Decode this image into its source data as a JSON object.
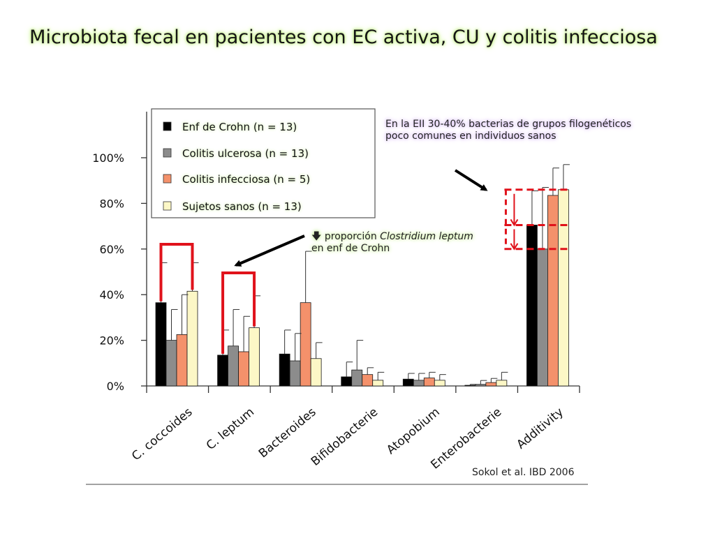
{
  "slide": {
    "title": "Microbiota fecal en pacientes con EC activa, CU y colitis infecciosa",
    "source": "Sokol et al. IBD 2006"
  },
  "annotations": {
    "top_note": "En la EII 30-40% bacterias de grupos filogenéticos poco comunes en individuos sanos",
    "mid_note_icon": "arrow-down-icon",
    "mid_note_prefix": "proporción ",
    "mid_note_italic": "Clostridium leptum",
    "mid_note_suffix": " en enf de Crohn"
  },
  "colors": {
    "crohn": "#000000",
    "uc": "#8c8c8c",
    "infectious": "#f4916b",
    "healthy": "#fcf7c6",
    "bracket": "#e0121b",
    "title_glow": "#c8f08a",
    "top_note_glow": "#c9a6ee",
    "mid_note_glow": "#bfe88a"
  },
  "chart_data": {
    "type": "bar",
    "categories": [
      "C. coccoides",
      "C. leptum",
      "Bacteroides",
      "Bifidobacterie",
      "Atopobium",
      "Enterobacterie",
      "Additivity"
    ],
    "yticks": [
      "0%",
      "20%",
      "40%",
      "60%",
      "80%",
      "100%"
    ],
    "ylim": [
      0,
      100
    ],
    "series": [
      {
        "name": "Enf de Crohn (n = 13)",
        "values": [
          36.5,
          13.5,
          14,
          4,
          3,
          0.3,
          70.5
        ],
        "errors": [
          17.5,
          11,
          10.5,
          6.5,
          2.5,
          0.4,
          15
        ]
      },
      {
        "name": "Colitis ulcerosa (n = 13)",
        "values": [
          20,
          17.5,
          11,
          7,
          2.5,
          0.7,
          60
        ],
        "errors": [
          13.5,
          16,
          12,
          13,
          3,
          1.7,
          27
        ]
      },
      {
        "name": "Colitis infecciosa (n = 5)",
        "values": [
          22.5,
          15,
          36.5,
          5,
          3.5,
          1.5,
          83.5
        ],
        "errors": [
          17.5,
          15.5,
          22.5,
          3,
          2.5,
          1.8,
          12
        ]
      },
      {
        "name": "Sujetos sanos (n = 13)",
        "values": [
          41.5,
          25.5,
          12,
          2.5,
          2.5,
          2.5,
          86
        ],
        "errors": [
          12.5,
          14,
          7,
          3.5,
          2.5,
          3.5,
          11
        ]
      }
    ]
  }
}
